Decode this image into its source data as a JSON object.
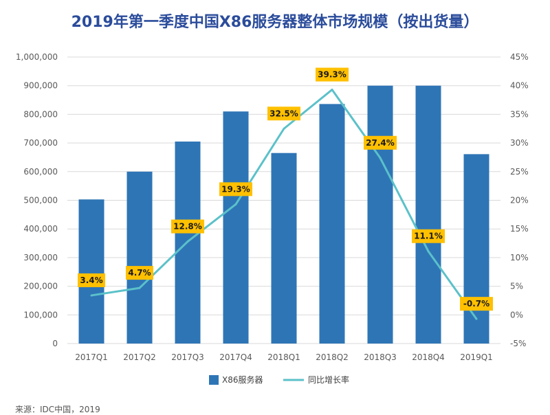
{
  "page": {
    "source_text": "来源：IDC中国，2019"
  },
  "colors": {
    "bar": "#2e75b6",
    "line": "#5bc1c9",
    "label_bg": "#ffc000",
    "grid": "#d9d9d9",
    "title": "#2b4c9b"
  },
  "chart_data": {
    "type": "bar",
    "title": "2019年第一季度中国X86服务器整体市场规模（按出货量）",
    "categories": [
      "2017Q1",
      "2017Q2",
      "2017Q3",
      "2017Q4",
      "2018Q1",
      "2018Q2",
      "2018Q3",
      "2018Q4",
      "2019Q1"
    ],
    "series": [
      {
        "name": "X86服务器",
        "type": "bar",
        "axis": "left",
        "values": [
          503000,
          600000,
          705000,
          810000,
          665000,
          836000,
          900000,
          900000,
          661000
        ]
      },
      {
        "name": "同比增长率",
        "type": "line",
        "axis": "right",
        "values": [
          3.4,
          4.7,
          12.8,
          19.3,
          32.5,
          39.3,
          27.4,
          11.1,
          -0.7
        ],
        "labels": [
          "3.4%",
          "4.7%",
          "12.8%",
          "19.3%",
          "32.5%",
          "39.3%",
          "27.4%",
          "11.1%",
          "-0.7%"
        ]
      }
    ],
    "y_left": {
      "min": 0,
      "max": 1000000,
      "step": 100000,
      "tick_labels": [
        "0",
        "100,000",
        "200,000",
        "300,000",
        "400,000",
        "500,000",
        "600,000",
        "700,000",
        "800,000",
        "900,000",
        "1,000,000"
      ]
    },
    "y_right": {
      "min": -5,
      "max": 45,
      "step": 5,
      "tick_labels": [
        "-5%",
        "0%",
        "5%",
        "10%",
        "15%",
        "20%",
        "25%",
        "30%",
        "35%",
        "40%",
        "45%"
      ]
    },
    "grid": true,
    "legend_position": "bottom"
  }
}
